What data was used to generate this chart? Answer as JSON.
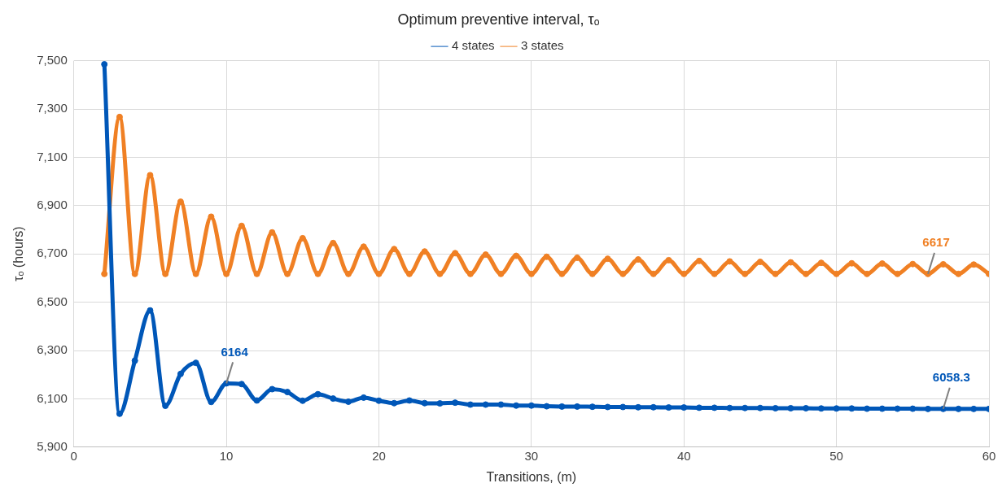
{
  "chart_data": {
    "type": "line",
    "title": "Optimum preventive interval, τₒ",
    "xlabel": "Transitions, (m)",
    "ylabel": "τₒ (hours)",
    "x": [
      2,
      3,
      4,
      5,
      6,
      7,
      8,
      9,
      10,
      11,
      12,
      13,
      14,
      15,
      16,
      17,
      18,
      19,
      20,
      21,
      22,
      23,
      24,
      25,
      26,
      27,
      28,
      29,
      30,
      31,
      32,
      33,
      34,
      35,
      36,
      37,
      38,
      39,
      40,
      41,
      42,
      43,
      44,
      45,
      46,
      47,
      48,
      49,
      50,
      51,
      52,
      53,
      54,
      55,
      56,
      57,
      58,
      59,
      60
    ],
    "series": [
      {
        "name": "4 states",
        "color": "#0057b8",
        "values": [
          7485,
          6038,
          6258,
          6466,
          6071,
          6203,
          6249,
          6087,
          6164,
          6161,
          6093,
          6140,
          6128,
          6092,
          6119,
          6101,
          6088,
          6105,
          6092,
          6082,
          6093,
          6082,
          6081,
          6084,
          6076,
          6076,
          6076,
          6072,
          6072,
          6069,
          6068,
          6068,
          6067,
          6066,
          6066,
          6065,
          6065,
          6064,
          6064,
          6063,
          6063,
          6062,
          6062,
          6062,
          6061,
          6061,
          6061,
          6060,
          6060,
          6060,
          6059,
          6059,
          6059,
          6059,
          6058,
          6058.3,
          6058,
          6058,
          6058
        ]
      },
      {
        "name": "3 states",
        "color": "#f08024",
        "values": [
          6617,
          7267,
          6617,
          7026,
          6617,
          6916,
          6617,
          6854,
          6617,
          6816,
          6617,
          6789,
          6617,
          6765,
          6617,
          6745,
          6617,
          6730,
          6617,
          6720,
          6617,
          6710,
          6617,
          6703,
          6617,
          6697,
          6617,
          6692,
          6617,
          6688,
          6617,
          6684,
          6617,
          6680,
          6617,
          6677,
          6617,
          6674,
          6617,
          6671,
          6617,
          6669,
          6617,
          6667,
          6617,
          6665,
          6617,
          6663,
          6617,
          6661,
          6617,
          6660,
          6617,
          6658,
          6617,
          6657,
          6617,
          6656,
          6617
        ]
      }
    ],
    "xlim": [
      0,
      60
    ],
    "xticks": [
      0,
      10,
      20,
      30,
      40,
      50,
      60
    ],
    "ylim": [
      5900,
      7500
    ],
    "yticks": [
      {
        "value": 5900,
        "label": "5,900"
      },
      {
        "value": 6100,
        "label": "6,100"
      },
      {
        "value": 6300,
        "label": "6,300"
      },
      {
        "value": 6500,
        "label": "6,500"
      },
      {
        "value": 6700,
        "label": "6,700"
      },
      {
        "value": 6900,
        "label": "6,900"
      },
      {
        "value": 7100,
        "label": "7,100"
      },
      {
        "value": 7300,
        "label": "7,300"
      },
      {
        "value": 7500,
        "label": "7,500"
      }
    ],
    "annotations": [
      {
        "text": "6164",
        "x": 10,
        "y": 6164
      },
      {
        "text": "6617",
        "x": 56,
        "y": 6617
      },
      {
        "text": "6058.3",
        "x": 57,
        "y": 6058.3
      }
    ],
    "grid": true,
    "legend": "top",
    "marker": "circle",
    "line_style": "solid"
  }
}
